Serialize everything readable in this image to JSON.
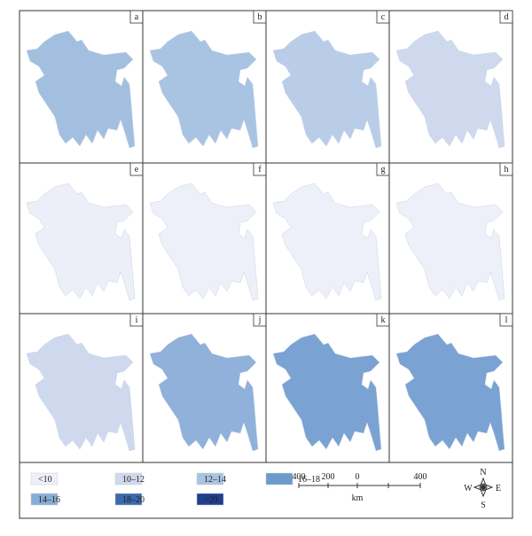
{
  "panels": [
    {
      "label": "a",
      "fill": "#a3bfe0"
    },
    {
      "label": "b",
      "fill": "#a9c4e2"
    },
    {
      "label": "c",
      "fill": "#b9cde8"
    },
    {
      "label": "d",
      "fill": "#cfd9ee"
    },
    {
      "label": "e",
      "fill": "#eceff8"
    },
    {
      "label": "f",
      "fill": "#eef0f9"
    },
    {
      "label": "g",
      "fill": "#eef0f9"
    },
    {
      "label": "h",
      "fill": "#eef0f9"
    },
    {
      "label": "i",
      "fill": "#cfd9ee"
    },
    {
      "label": "j",
      "fill": "#8fb1da"
    },
    {
      "label": "k",
      "fill": "#7aa3d3"
    },
    {
      "label": "l",
      "fill": "#7aa3d3"
    }
  ],
  "legend": [
    {
      "label": "<10",
      "color": "#eef0f9"
    },
    {
      "label": "10–12",
      "color": "#cfd9ee"
    },
    {
      "label": "12–14",
      "color": "#a9c4e2"
    },
    {
      "label": "16–18",
      "color": "#6c9acc"
    },
    {
      "label": "14–16",
      "color": "#88acd8"
    },
    {
      "label": "18–20",
      "color": "#3d68ad"
    },
    {
      "label": ">20",
      "color": "#213f8f"
    }
  ],
  "scale": {
    "ticks": [
      "400",
      "200",
      "0",
      "400"
    ],
    "unit": "km"
  },
  "compass": {
    "n": "N",
    "s": "S",
    "e": "E",
    "w": "W"
  }
}
